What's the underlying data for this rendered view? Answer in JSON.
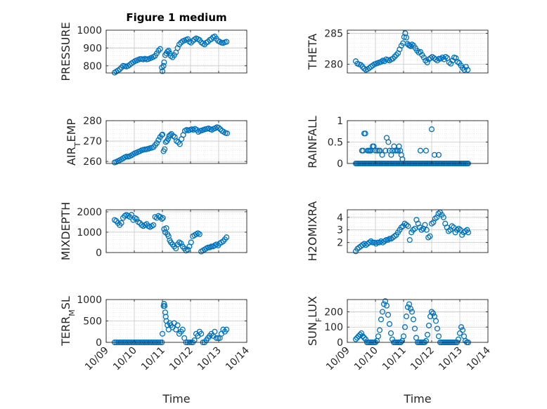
{
  "figure": {
    "title": "Figure 1 medium",
    "xlabel": "Time"
  },
  "colors": {
    "marker": "#0072BD",
    "axis": "#262626",
    "grid": "#d9d9d9",
    "bg": "#ffffff"
  },
  "chart_data": [
    {
      "type": "scatter",
      "ylabel": "PRESSURE",
      "ylim": [
        760,
        1000
      ],
      "yticks": [
        800,
        900,
        1000
      ],
      "grid": true,
      "x": [
        9.3,
        9.36,
        9.42,
        9.48,
        9.54,
        9.6,
        9.66,
        9.72,
        9.78,
        9.84,
        9.9,
        9.96,
        10.02,
        10.08,
        10.14,
        10.2,
        10.26,
        10.32,
        10.38,
        10.44,
        10.5,
        10.56,
        10.62,
        10.68,
        10.74,
        10.8,
        10.86,
        10.92,
        10.98,
        11.0,
        11.04,
        11.06,
        11.1,
        11.14,
        11.18,
        11.22,
        11.26,
        11.3,
        11.36,
        11.42,
        11.48,
        11.54,
        11.6,
        11.66,
        11.72,
        11.78,
        11.84,
        11.9,
        11.96,
        12.02,
        12.08,
        12.14,
        12.2,
        12.26,
        12.32,
        12.38,
        12.44,
        12.5,
        12.56,
        12.62,
        12.68,
        12.74,
        12.8,
        12.86,
        12.92,
        12.98,
        13.04,
        13.1,
        13.16,
        13.22,
        13.28
      ],
      "y": [
        762,
        768,
        774,
        780,
        790,
        800,
        798,
        796,
        800,
        806,
        814,
        820,
        826,
        830,
        834,
        838,
        838,
        836,
        840,
        836,
        838,
        842,
        846,
        850,
        856,
        870,
        885,
        895,
        790,
        770,
        800,
        820,
        860,
        870,
        880,
        885,
        870,
        855,
        848,
        860,
        875,
        900,
        920,
        930,
        938,
        942,
        946,
        950,
        935,
        930,
        940,
        948,
        954,
        950,
        945,
        932,
        925,
        920,
        930,
        935,
        945,
        950,
        960,
        965,
        952,
        940,
        935,
        930,
        928,
        932,
        935
      ]
    },
    {
      "type": "scatter",
      "ylabel": "THETA",
      "ylim": [
        278.6,
        285.5
      ],
      "yticks": [
        280,
        285
      ],
      "grid": true,
      "x": [
        9.3,
        9.36,
        9.42,
        9.48,
        9.54,
        9.6,
        9.66,
        9.72,
        9.78,
        9.84,
        9.9,
        9.96,
        10.02,
        10.08,
        10.14,
        10.2,
        10.26,
        10.32,
        10.38,
        10.44,
        10.5,
        10.56,
        10.62,
        10.68,
        10.74,
        10.8,
        10.86,
        10.92,
        10.98,
        11.02,
        11.06,
        11.1,
        11.14,
        11.18,
        11.22,
        11.26,
        11.3,
        11.36,
        11.42,
        11.48,
        11.54,
        11.6,
        11.66,
        11.72,
        11.78,
        11.84,
        11.9,
        11.96,
        12.02,
        12.08,
        12.14,
        12.2,
        12.26,
        12.32,
        12.38,
        12.44,
        12.5,
        12.56,
        12.62,
        12.68,
        12.74,
        12.8,
        12.86,
        12.92,
        12.98,
        13.04,
        13.1,
        13.16,
        13.22,
        13.28
      ],
      "y": [
        280.5,
        280.1,
        280,
        279.9,
        279.6,
        279.3,
        279.1,
        279.2,
        279.4,
        279.6,
        279.8,
        280,
        280.1,
        280.2,
        280.3,
        280.4,
        280.6,
        280.5,
        280.8,
        280.7,
        280.6,
        280.8,
        280.9,
        281.2,
        281.5,
        281.8,
        282.4,
        283,
        283.4,
        284.4,
        285.0,
        284.3,
        283.3,
        283.1,
        283.0,
        282.9,
        283.2,
        283.0,
        282.6,
        282.2,
        281.9,
        282.0,
        281.5,
        281.1,
        280.6,
        280.3,
        280.8,
        281.0,
        281.2,
        281.0,
        280.8,
        280.6,
        280.9,
        280.9,
        281.1,
        280.8,
        281.2,
        281.0,
        280.3,
        280.1,
        280.6,
        281.1,
        281.0,
        280.4,
        280.2,
        279.8,
        279.4,
        279.1,
        279.6,
        279.1
      ]
    },
    {
      "type": "scatter",
      "ylabel": "AIR_TEMP",
      "ylim": [
        259,
        280
      ],
      "yticks": [
        260,
        270,
        280
      ],
      "grid": true,
      "x": [
        9.3,
        9.36,
        9.42,
        9.48,
        9.54,
        9.6,
        9.66,
        9.72,
        9.78,
        9.84,
        9.9,
        9.96,
        10.02,
        10.08,
        10.14,
        10.2,
        10.26,
        10.32,
        10.38,
        10.44,
        10.5,
        10.56,
        10.62,
        10.68,
        10.74,
        10.8,
        10.86,
        10.92,
        10.98,
        11.0,
        11.04,
        11.08,
        11.12,
        11.16,
        11.2,
        11.24,
        11.28,
        11.32,
        11.38,
        11.44,
        11.5,
        11.56,
        11.62,
        11.68,
        11.74,
        11.8,
        11.86,
        11.92,
        11.98,
        12.04,
        12.1,
        12.16,
        12.22,
        12.28,
        12.34,
        12.4,
        12.46,
        12.52,
        12.58,
        12.64,
        12.7,
        12.76,
        12.82,
        12.88,
        12.94,
        13.0,
        13.06,
        13.12,
        13.18,
        13.24,
        13.3
      ],
      "y": [
        259.5,
        259.8,
        260.2,
        260.6,
        261,
        261.5,
        262,
        262.4,
        262.3,
        262.6,
        263,
        263.5,
        264,
        264.3,
        264.7,
        265,
        265.5,
        265.7,
        265.9,
        266,
        266.2,
        266.5,
        266.7,
        267.0,
        268.0,
        269.0,
        270.5,
        272.0,
        273.0,
        273.2,
        265,
        266,
        269.5,
        270,
        271,
        272.5,
        273,
        273.5,
        272.5,
        272,
        270,
        269.5,
        268.5,
        271,
        273,
        275,
        275.5,
        275.2,
        275.5,
        275.8,
        275.5,
        276,
        275.5,
        274.5,
        275,
        275.2,
        275.5,
        275.8,
        276,
        276.2,
        275.8,
        275.5,
        276,
        276.3,
        276.8,
        276.5,
        275.8,
        275,
        274.5,
        274,
        273.8
      ]
    },
    {
      "type": "scatter",
      "ylabel": "RAINFALL",
      "ylim": [
        0,
        1
      ],
      "yticks": [
        0,
        0.5,
        1
      ],
      "grid": true,
      "x": [
        9.3,
        9.34,
        9.38,
        9.42,
        9.46,
        9.5,
        9.54,
        9.58,
        9.62,
        9.66,
        9.7,
        9.74,
        9.78,
        9.82,
        9.86,
        9.9,
        9.94,
        9.98,
        10.02,
        10.06,
        10.1,
        10.14,
        10.18,
        10.22,
        10.26,
        10.3,
        10.34,
        10.38,
        10.42,
        10.46,
        10.5,
        10.54,
        10.58,
        10.62,
        10.66,
        10.7,
        10.74,
        10.78,
        10.82,
        10.86,
        10.9,
        10.94,
        10.98,
        11.02,
        11.06,
        11.1,
        11.14,
        11.18,
        11.22,
        11.26,
        11.3,
        11.34,
        11.38,
        11.42,
        11.46,
        11.5,
        11.54,
        11.58,
        11.62,
        11.66,
        11.7,
        11.74,
        11.78,
        11.82,
        11.86,
        11.9,
        11.94,
        11.98,
        12.02,
        12.06,
        12.1,
        12.14,
        12.18,
        12.22,
        12.26,
        12.3,
        12.34,
        12.38,
        12.42,
        12.46,
        12.5,
        12.54,
        12.58,
        12.62,
        12.66,
        12.7,
        12.74,
        12.78,
        12.82,
        12.86,
        12.9,
        12.94,
        12.98,
        13.02,
        13.06,
        13.1,
        13.14,
        13.18,
        13.22,
        13.26,
        13.3,
        9.52,
        9.56,
        9.6,
        9.64,
        9.72,
        9.76,
        9.8,
        9.84,
        9.9,
        9.94,
        10.0,
        10.06,
        10.12,
        10.16,
        10.24,
        10.36,
        10.4,
        10.46,
        10.5,
        10.56,
        10.6,
        10.66,
        10.7,
        10.76,
        10.8,
        10.84,
        10.88,
        10.92,
        10.96,
        11.6,
        11.8,
        12.0,
        12.1,
        12.25
      ],
      "y": [
        0,
        0,
        0,
        0,
        0,
        0,
        0,
        0,
        0,
        0,
        0,
        0,
        0,
        0,
        0,
        0,
        0,
        0,
        0,
        0,
        0,
        0,
        0,
        0,
        0,
        0,
        0,
        0,
        0,
        0,
        0,
        0,
        0,
        0,
        0,
        0,
        0,
        0,
        0,
        0,
        0,
        0,
        0,
        0,
        0,
        0,
        0,
        0,
        0,
        0,
        0,
        0,
        0,
        0,
        0,
        0,
        0,
        0,
        0,
        0,
        0,
        0,
        0,
        0,
        0,
        0,
        0,
        0,
        0,
        0,
        0,
        0,
        0,
        0,
        0,
        0,
        0,
        0,
        0,
        0,
        0,
        0,
        0,
        0,
        0,
        0,
        0,
        0,
        0,
        0,
        0,
        0,
        0,
        0,
        0,
        0,
        0,
        0,
        0,
        0,
        0,
        0.3,
        0.3,
        0.7,
        0.7,
        0.3,
        0.3,
        0.3,
        0.3,
        0.4,
        0.4,
        0.3,
        0.3,
        0.3,
        0.3,
        0.2,
        0.3,
        0.6,
        0.5,
        0.3,
        0.2,
        0.3,
        0.4,
        0.3,
        0.3,
        0.3,
        0.4,
        0.3,
        0.2,
        0.1,
        0.3,
        0.3,
        0.8,
        0.2,
        0.2
      ]
    },
    {
      "type": "scatter",
      "ylabel": "MIXDEPTH",
      "ylim": [
        0,
        2100
      ],
      "yticks": [
        0,
        1000,
        2000
      ],
      "grid": true,
      "x": [
        9.3,
        9.36,
        9.42,
        9.48,
        9.54,
        9.6,
        9.66,
        9.72,
        9.78,
        9.84,
        9.9,
        9.96,
        10.02,
        10.08,
        10.14,
        10.2,
        10.26,
        10.32,
        10.38,
        10.44,
        10.5,
        10.56,
        10.62,
        10.68,
        10.74,
        10.8,
        10.86,
        10.92,
        10.98,
        11.02,
        11.06,
        11.1,
        11.14,
        11.18,
        11.22,
        11.26,
        11.3,
        11.36,
        11.42,
        11.48,
        11.54,
        11.6,
        11.66,
        11.72,
        11.78,
        11.84,
        11.9,
        11.96,
        12.02,
        12.08,
        12.14,
        12.2,
        12.26,
        12.32,
        12.38,
        12.44,
        12.5,
        12.56,
        12.62,
        12.68,
        12.74,
        12.8,
        12.86,
        12.92,
        12.98,
        13.04,
        13.1,
        13.16,
        13.22,
        13.28
      ],
      "y": [
        1600,
        1550,
        1450,
        1350,
        1450,
        1700,
        1800,
        1850,
        1800,
        1750,
        1850,
        1600,
        1700,
        1650,
        1500,
        1450,
        1350,
        1300,
        1350,
        1400,
        1300,
        1250,
        1300,
        1350,
        1750,
        1700,
        1800,
        1750,
        1650,
        1700,
        1150,
        1000,
        1200,
        900,
        800,
        600,
        500,
        400,
        300,
        200,
        400,
        500,
        450,
        300,
        200,
        100,
        150,
        300,
        500,
        800,
        850,
        900,
        950,
        900,
        50,
        100,
        150,
        200,
        250,
        250,
        300,
        300,
        350,
        400,
        350,
        450,
        500,
        550,
        650,
        750
      ]
    },
    {
      "type": "scatter",
      "ylabel": "H2OMIXRA",
      "ylim": [
        1.2,
        4.6
      ],
      "yticks": [
        2,
        3,
        4
      ],
      "grid": true,
      "x": [
        9.3,
        9.36,
        9.42,
        9.48,
        9.54,
        9.6,
        9.66,
        9.72,
        9.78,
        9.84,
        9.9,
        9.96,
        10.02,
        10.08,
        10.14,
        10.2,
        10.26,
        10.32,
        10.38,
        10.44,
        10.5,
        10.56,
        10.62,
        10.68,
        10.74,
        10.8,
        10.86,
        10.92,
        10.98,
        11.04,
        11.1,
        11.16,
        11.22,
        11.28,
        11.34,
        11.4,
        11.46,
        11.52,
        11.58,
        11.64,
        11.7,
        11.76,
        11.82,
        11.88,
        11.94,
        12.0,
        12.06,
        12.12,
        12.18,
        12.24,
        12.3,
        12.36,
        12.42,
        12.48,
        12.54,
        12.6,
        12.66,
        12.72,
        12.78,
        12.84,
        12.9,
        12.96,
        13.02,
        13.08,
        13.14,
        13.2,
        13.26,
        13.3
      ],
      "y": [
        1.3,
        1.5,
        1.6,
        1.7,
        1.8,
        1.9,
        1.8,
        1.9,
        2.0,
        2.1,
        2.0,
        2.0,
        1.9,
        2.0,
        2.0,
        2.1,
        2.0,
        2.1,
        2.2,
        2.2,
        2.3,
        2.3,
        2.4,
        2.5,
        2.6,
        2.8,
        3.0,
        3.2,
        3.3,
        3.5,
        3.4,
        3.3,
        2.2,
        2.8,
        3.0,
        3.1,
        3.8,
        3.5,
        3.2,
        3.0,
        3.1,
        3.4,
        3.0,
        2.4,
        2.5,
        3.5,
        3.6,
        3.9,
        4.0,
        4.3,
        4.4,
        4.2,
        4.0,
        3.5,
        3.2,
        2.9,
        3.0,
        3.3,
        3.2,
        2.8,
        3.0,
        3.1,
        3.0,
        2.6,
        2.8,
        2.9,
        3.0,
        2.8
      ]
    },
    {
      "type": "scatter",
      "ylabel": "TERR_MSL",
      "ylim": [
        0,
        1000
      ],
      "yticks": [
        0,
        500,
        1000
      ],
      "grid": true,
      "x": [
        9.3,
        9.36,
        9.42,
        9.48,
        9.54,
        9.6,
        9.66,
        9.72,
        9.78,
        9.84,
        9.9,
        9.96,
        10.02,
        10.08,
        10.14,
        10.2,
        10.26,
        10.32,
        10.38,
        10.44,
        10.5,
        10.56,
        10.62,
        10.68,
        10.74,
        10.8,
        10.86,
        10.92,
        10.98,
        11.0,
        11.04,
        11.06,
        11.08,
        11.1,
        11.12,
        11.14,
        11.18,
        11.22,
        11.26,
        11.3,
        11.36,
        11.42,
        11.48,
        11.54,
        11.6,
        11.66,
        11.72,
        11.78,
        11.84,
        11.9,
        11.96,
        12.02,
        12.08,
        12.14,
        12.2,
        12.26,
        12.32,
        12.38,
        12.44,
        12.5,
        12.56,
        12.62,
        12.68,
        12.74,
        12.8,
        12.86,
        12.92,
        12.98,
        13.04,
        13.1,
        13.16,
        13.22,
        13.28
      ],
      "y": [
        0,
        0,
        0,
        0,
        0,
        0,
        0,
        0,
        0,
        0,
        0,
        0,
        0,
        0,
        0,
        0,
        0,
        0,
        0,
        0,
        0,
        0,
        0,
        0,
        0,
        0,
        0,
        0,
        0,
        200,
        850,
        900,
        850,
        700,
        600,
        500,
        400,
        300,
        450,
        400,
        350,
        450,
        300,
        400,
        200,
        250,
        300,
        100,
        0,
        0,
        0,
        0,
        0,
        50,
        200,
        150,
        250,
        200,
        0,
        0,
        50,
        100,
        150,
        200,
        150,
        250,
        100,
        100,
        100,
        200,
        300,
        250,
        300
      ]
    },
    {
      "type": "scatter",
      "ylabel": "SUN_FLUX",
      "ylim": [
        0,
        280
      ],
      "yticks": [
        0,
        100,
        200
      ],
      "grid": true,
      "x": [
        9.3,
        9.35,
        9.4,
        9.45,
        9.5,
        9.55,
        9.6,
        9.65,
        9.7,
        9.75,
        9.8,
        9.85,
        9.9,
        9.95,
        10.0,
        10.05,
        10.1,
        10.15,
        10.2,
        10.25,
        10.3,
        10.35,
        10.4,
        10.45,
        10.5,
        10.55,
        10.6,
        10.65,
        10.7,
        10.75,
        10.8,
        10.85,
        10.9,
        10.95,
        11.0,
        11.05,
        11.1,
        11.15,
        11.2,
        11.25,
        11.3,
        11.35,
        11.4,
        11.45,
        11.5,
        11.55,
        11.6,
        11.65,
        11.7,
        11.75,
        11.8,
        11.85,
        11.9,
        11.95,
        12.0,
        12.05,
        12.1,
        12.15,
        12.2,
        12.25,
        12.3,
        12.35,
        12.4,
        12.45,
        12.5,
        12.55,
        12.6,
        12.65,
        12.7,
        12.75,
        12.8,
        12.85,
        12.9,
        12.95,
        13.0,
        13.05,
        13.1,
        13.15,
        13.2,
        13.25,
        13.3
      ],
      "y": [
        20,
        30,
        40,
        50,
        60,
        40,
        30,
        20,
        0,
        0,
        0,
        0,
        0,
        0,
        0,
        10,
        40,
        80,
        150,
        200,
        250,
        270,
        240,
        180,
        120,
        60,
        20,
        0,
        0,
        0,
        0,
        0,
        0,
        10,
        40,
        100,
        170,
        230,
        250,
        220,
        200,
        150,
        90,
        30,
        0,
        0,
        0,
        0,
        0,
        0,
        10,
        50,
        110,
        170,
        200,
        190,
        170,
        140,
        90,
        40,
        0,
        0,
        0,
        0,
        0,
        0,
        0,
        0,
        0,
        0,
        0,
        0,
        0,
        20,
        60,
        100,
        80,
        40,
        10,
        0,
        0
      ]
    }
  ],
  "xaxis": {
    "ticks": [
      "10/09",
      "10/10",
      "10/11",
      "10/12",
      "10/13",
      "10/14"
    ],
    "range": [
      9,
      14
    ]
  }
}
